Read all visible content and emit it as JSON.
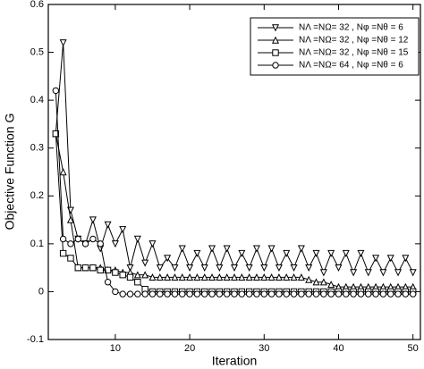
{
  "chart_data": {
    "type": "line",
    "xlabel": "Iteration",
    "ylabel": "Objective Function G",
    "x": [
      2,
      3,
      4,
      5,
      6,
      7,
      8,
      9,
      10,
      11,
      12,
      13,
      14,
      15,
      16,
      17,
      18,
      19,
      20,
      21,
      22,
      23,
      24,
      25,
      26,
      27,
      28,
      29,
      30,
      31,
      32,
      33,
      34,
      35,
      36,
      37,
      38,
      39,
      40,
      41,
      42,
      43,
      44,
      45,
      46,
      47,
      48,
      49,
      50
    ],
    "series": [
      {
        "name": "NΛ =NΩ= 32 , Nφ =Nθ = 6",
        "color": "#000000",
        "marker": "triangle-down",
        "values": [
          0.33,
          0.52,
          0.17,
          0.11,
          0.1,
          0.15,
          0.09,
          0.14,
          0.1,
          0.13,
          0.05,
          0.11,
          0.06,
          0.1,
          0.05,
          0.07,
          0.05,
          0.09,
          0.05,
          0.08,
          0.05,
          0.09,
          0.05,
          0.09,
          0.05,
          0.08,
          0.05,
          0.09,
          0.05,
          0.09,
          0.05,
          0.08,
          0.05,
          0.09,
          0.05,
          0.08,
          0.04,
          0.08,
          0.05,
          0.08,
          0.04,
          0.08,
          0.04,
          0.07,
          0.04,
          0.07,
          0.04,
          0.07,
          0.04
        ]
      },
      {
        "name": "NΛ =NΩ= 32 , Nφ =Nθ = 12",
        "color": "#000000",
        "marker": "triangle-up",
        "values": [
          0.33,
          0.25,
          0.15,
          0.05,
          0.05,
          0.05,
          0.05,
          0.045,
          0.045,
          0.04,
          0.04,
          0.035,
          0.035,
          0.03,
          0.03,
          0.03,
          0.03,
          0.03,
          0.03,
          0.03,
          0.03,
          0.03,
          0.03,
          0.03,
          0.03,
          0.03,
          0.03,
          0.03,
          0.03,
          0.03,
          0.03,
          0.03,
          0.03,
          0.03,
          0.025,
          0.02,
          0.02,
          0.015,
          0.01,
          0.01,
          0.01,
          0.01,
          0.01,
          0.01,
          0.01,
          0.01,
          0.01,
          0.01,
          0.01
        ]
      },
      {
        "name": "NΛ =NΩ= 32 , Nφ =Nθ = 15",
        "color": "#000000",
        "marker": "square",
        "values": [
          0.33,
          0.08,
          0.07,
          0.05,
          0.05,
          0.05,
          0.045,
          0.045,
          0.04,
          0.035,
          0.03,
          0.02,
          0.005,
          0,
          0,
          0,
          0,
          0,
          0,
          0,
          0,
          0,
          0,
          0,
          0,
          0,
          0,
          0,
          0,
          0,
          0,
          0,
          0,
          0,
          0,
          0,
          0,
          0,
          0,
          0,
          0,
          0,
          0,
          0,
          0,
          0,
          0,
          0,
          0
        ]
      },
      {
        "name": "NΛ =NΩ= 64 , Nφ =Nθ = 6",
        "color": "#000000",
        "marker": "circle",
        "values": [
          0.42,
          0.11,
          0.1,
          0.11,
          0.1,
          0.11,
          0.1,
          0.02,
          0.0,
          -0.005,
          -0.005,
          -0.005,
          -0.005,
          -0.005,
          -0.005,
          -0.005,
          -0.005,
          -0.005,
          -0.005,
          -0.005,
          -0.005,
          -0.005,
          -0.005,
          -0.005,
          -0.005,
          -0.005,
          -0.005,
          -0.005,
          -0.005,
          -0.005,
          -0.005,
          -0.005,
          -0.005,
          -0.005,
          -0.005,
          -0.005,
          -0.005,
          -0.005,
          -0.005,
          -0.005,
          -0.005,
          -0.005,
          -0.005,
          -0.005,
          -0.005,
          -0.005,
          -0.005,
          -0.005,
          -0.005
        ]
      }
    ],
    "xlim": [
      1,
      51
    ],
    "xticks": [
      10,
      20,
      30,
      40,
      50
    ],
    "ylim": [
      -0.1,
      0.6
    ],
    "yticks": [
      -0.1,
      0,
      0.1,
      0.2,
      0.3,
      0.4,
      0.5,
      0.6
    ],
    "legend": "top-right"
  }
}
